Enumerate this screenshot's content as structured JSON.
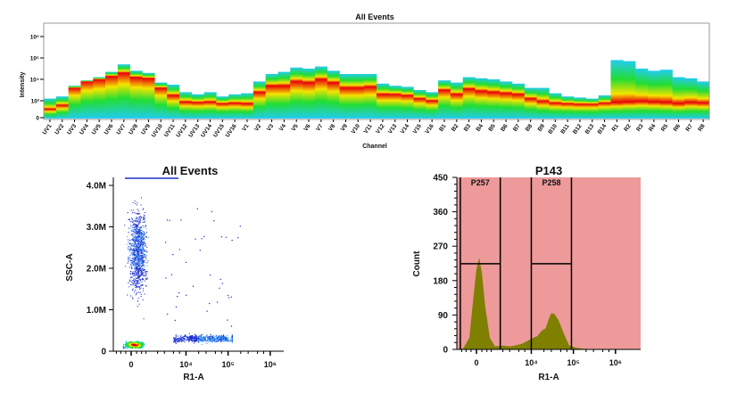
{
  "chart_data": [
    {
      "type": "heatmap",
      "title": "All Events",
      "xlabel": "Channel",
      "ylabel": "Intensity",
      "yticks": [
        "0",
        "10³",
        "10⁴",
        "10⁵",
        "10⁶"
      ],
      "channels": [
        "UV1",
        "UV2",
        "UV3",
        "UV4",
        "UV5",
        "UV6",
        "UV7",
        "UV8",
        "UV9",
        "UV10",
        "UV11",
        "UV12",
        "UV13",
        "UV14",
        "UV15",
        "UV16",
        "V1",
        "V2",
        "V3",
        "V4",
        "V5",
        "V6",
        "V7",
        "V8",
        "V9",
        "V10",
        "V11",
        "V12",
        "V13",
        "V14",
        "V15",
        "V16",
        "B1",
        "B2",
        "B3",
        "B4",
        "B5",
        "B6",
        "B7",
        "B8",
        "B9",
        "B10",
        "B11",
        "B12",
        "B13",
        "B14",
        "R1",
        "R2",
        "R3",
        "R4",
        "R5",
        "R6",
        "R7",
        "R8"
      ],
      "top_log10": [
        3.1,
        3.2,
        3.7,
        3.95,
        4.1,
        4.35,
        4.7,
        4.4,
        4.3,
        3.85,
        3.75,
        3.4,
        3.3,
        3.4,
        3.2,
        3.3,
        3.35,
        3.9,
        4.25,
        4.35,
        4.55,
        4.5,
        4.6,
        4.4,
        4.25,
        4.25,
        4.25,
        3.8,
        3.7,
        3.65,
        3.5,
        3.4,
        3.95,
        3.85,
        4.1,
        4.05,
        4.0,
        3.9,
        3.8,
        3.6,
        3.6,
        3.35,
        3.2,
        3.15,
        3.1,
        3.25,
        4.9,
        4.85,
        4.5,
        4.4,
        4.45,
        4.1,
        4.05,
        3.9
      ],
      "peak_log10": [
        1.5,
        2.2,
        3.6,
        3.9,
        4.0,
        4.15,
        4.3,
        4.1,
        4.05,
        3.6,
        3.25,
        2.8,
        2.7,
        2.8,
        2.5,
        2.6,
        2.5,
        3.4,
        3.7,
        3.7,
        3.9,
        3.85,
        4.0,
        3.85,
        3.6,
        3.6,
        3.65,
        3.3,
        3.3,
        3.25,
        3.1,
        3.0,
        3.5,
        3.3,
        3.55,
        3.45,
        3.4,
        3.35,
        3.3,
        3.1,
        2.9,
        2.6,
        2.5,
        2.4,
        2.4,
        2.6,
        2.7,
        2.8,
        2.9,
        2.8,
        2.7,
        2.5,
        2.7,
        2.6
      ],
      "colors": {
        "high": "#e8000b",
        "mid": "#f5e400",
        "low": "#22dd33",
        "edge": "#22ccf0"
      }
    },
    {
      "type": "scatter",
      "title": "All Events",
      "xlabel": "R1-A",
      "ylabel": "SSC-A",
      "xticks": [
        {
          "v": 0,
          "label": "0"
        },
        {
          "v": 10000,
          "label": "10⁴"
        },
        {
          "v": 100000,
          "label": "10⁵"
        },
        {
          "v": 1000000,
          "label": "10⁶"
        }
      ],
      "yticks": [
        {
          "v": 0,
          "label": "0"
        },
        {
          "v": 1000000,
          "label": "1.0M"
        },
        {
          "v": 2000000,
          "label": "2.0M"
        },
        {
          "v": 3000000,
          "label": "3.0M"
        },
        {
          "v": 4000000,
          "label": "4.0M"
        }
      ],
      "ylim": [
        0,
        4200000
      ],
      "populations": [
        {
          "x_center": 200,
          "ssc_center": 150000,
          "n": 500
        },
        {
          "x_center": 400,
          "ssc_center": 2400000,
          "n": 1100
        },
        {
          "x_center": 40000,
          "ssc_center": 300000,
          "n": 600
        },
        {
          "x_center": 50000,
          "ssc_center": 2000000,
          "n": 40
        }
      ]
    },
    {
      "type": "area",
      "title": "P143",
      "xlabel": "R1-A",
      "ylabel": "Count",
      "ylim": [
        0,
        450
      ],
      "xticks": [
        {
          "v": 0,
          "label": "0"
        },
        {
          "v": 10000,
          "label": "10⁴"
        },
        {
          "v": 100000,
          "label": "10⁵"
        },
        {
          "v": 1000000,
          "label": "10⁶"
        }
      ],
      "yticks": [
        0,
        90,
        180,
        270,
        360,
        450
      ],
      "x": [
        -1500,
        -800,
        -400,
        -200,
        0,
        150,
        300,
        500,
        800,
        1200,
        2000,
        3000,
        4000,
        6000,
        8000,
        10000,
        14000,
        18000,
        22000,
        26000,
        30000,
        36000,
        45000,
        60000,
        80000,
        120000,
        200000,
        400000
      ],
      "counts": [
        0,
        2,
        30,
        120,
        210,
        240,
        200,
        110,
        30,
        8,
        10,
        8,
        10,
        15,
        22,
        28,
        35,
        50,
        55,
        80,
        95,
        92,
        75,
        40,
        10,
        4,
        1,
        0
      ],
      "gates": [
        {
          "name": "P257",
          "from": -1000,
          "to": 1700,
          "level": 224
        },
        {
          "name": "P258",
          "from": 10000,
          "to": 90000,
          "level": 224
        }
      ],
      "colors": {
        "background": "#ee9a9a",
        "fill": "#7f7f00"
      }
    }
  ]
}
